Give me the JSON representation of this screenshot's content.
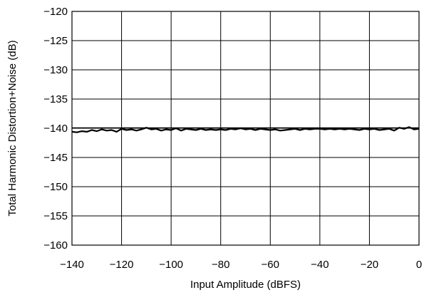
{
  "chart_data": {
    "type": "line",
    "title": "",
    "xlabel": "Input Amplitude (dBFS)",
    "ylabel": "Total Harmonic Distortion+Noise (dB)",
    "xlim": [
      -140,
      0
    ],
    "ylim": [
      -160,
      -120
    ],
    "x_ticks": [
      -140,
      -120,
      -100,
      -80,
      -60,
      -40,
      -20,
      0
    ],
    "y_ticks": [
      -120,
      -125,
      -130,
      -135,
      -140,
      -145,
      -150,
      -155,
      -160
    ],
    "x_tick_labels": [
      "−140",
      "−120",
      "−100",
      "−80",
      "−60",
      "−40",
      "−20",
      "0"
    ],
    "y_tick_labels": [
      "−120",
      "−125",
      "−130",
      "−135",
      "−140",
      "−145",
      "−150",
      "−155",
      "−160"
    ],
    "grid": true,
    "series": [
      {
        "color": "#000000",
        "x": [
          -140,
          -138,
          -136,
          -134,
          -132,
          -130,
          -128,
          -126,
          -124,
          -122,
          -120,
          -118,
          -116,
          -114,
          -112,
          -110,
          -108,
          -106,
          -104,
          -102,
          -100,
          -98,
          -96,
          -94,
          -92,
          -90,
          -88,
          -86,
          -84,
          -82,
          -80,
          -78,
          -76,
          -74,
          -72,
          -70,
          -68,
          -66,
          -64,
          -62,
          -60,
          -58,
          -56,
          -54,
          -52,
          -50,
          -48,
          -46,
          -44,
          -42,
          -40,
          -38,
          -36,
          -34,
          -32,
          -30,
          -28,
          -26,
          -24,
          -22,
          -20,
          -18,
          -16,
          -14,
          -12,
          -10,
          -8,
          -6,
          -4,
          -2,
          0
        ],
        "y": [
          -140.6,
          -140.7,
          -140.5,
          -140.6,
          -140.3,
          -140.5,
          -140.2,
          -140.4,
          -140.3,
          -140.6,
          -140.1,
          -140.3,
          -140.2,
          -140.4,
          -140.2,
          -139.9,
          -140.2,
          -140.1,
          -140.4,
          -140.2,
          -140.3,
          -140.0,
          -140.4,
          -140.1,
          -140.2,
          -140.3,
          -140.1,
          -140.3,
          -140.2,
          -140.3,
          -140.2,
          -140.3,
          -140.1,
          -140.2,
          -140.0,
          -140.2,
          -140.1,
          -140.3,
          -140.1,
          -140.2,
          -140.3,
          -140.2,
          -140.4,
          -140.3,
          -140.2,
          -140.1,
          -140.3,
          -140.1,
          -140.2,
          -140.1,
          -140.1,
          -140.2,
          -140.1,
          -140.2,
          -140.1,
          -140.2,
          -140.1,
          -140.2,
          -140.3,
          -140.1,
          -140.2,
          -140.1,
          -140.3,
          -140.2,
          -140.1,
          -140.4,
          -139.9,
          -140.1,
          -139.8,
          -140.2,
          -140.1
        ]
      }
    ],
    "reference_line": {
      "y": -139.9
    }
  }
}
